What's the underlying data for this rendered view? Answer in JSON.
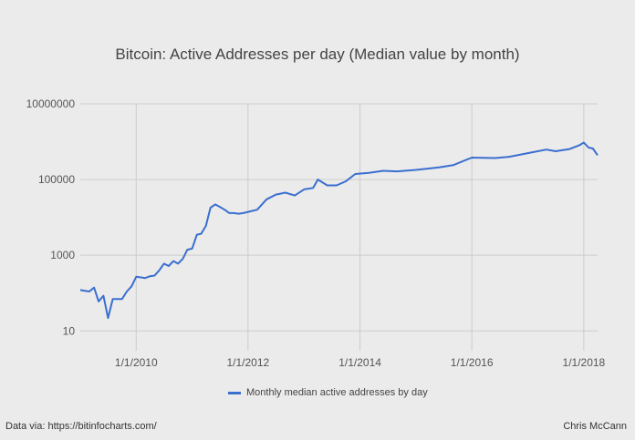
{
  "title": "Bitcoin: Active Addresses per day (Median value by month)",
  "source_note": "Data via: https://bitinfocharts.com/",
  "author": "Chris McCann",
  "colors": {
    "line": "#3a6fcf",
    "grid": "#cccccc",
    "background": "#ebebeb"
  },
  "chart_data": {
    "type": "line",
    "title": "Bitcoin: Active Addresses per day (Median value by month)",
    "xlabel": "",
    "ylabel": "",
    "yscale": "log",
    "ylim": [
      3,
      10000000
    ],
    "xlim": [
      "2009-01-01",
      "2018-04-01"
    ],
    "grid": true,
    "legend_position": "bottom",
    "y_ticks": [
      "10",
      "1000",
      "100000",
      "10000000"
    ],
    "x_ticks": [
      "1/1/2010",
      "1/1/2012",
      "1/1/2014",
      "1/1/2016",
      "1/1/2018"
    ],
    "series": [
      {
        "name": "Monthly median active addresses by day",
        "x": [
          "2009-01-01",
          "2009-02-01",
          "2009-03-01",
          "2009-04-01",
          "2009-05-01",
          "2009-06-01",
          "2009-07-01",
          "2009-08-01",
          "2009-09-01",
          "2009-10-01",
          "2009-11-01",
          "2009-12-01",
          "2010-01-01",
          "2010-02-01",
          "2010-03-01",
          "2010-04-01",
          "2010-05-01",
          "2010-06-01",
          "2010-07-01",
          "2010-08-01",
          "2010-09-01",
          "2010-10-01",
          "2010-11-01",
          "2010-12-01",
          "2011-01-01",
          "2011-02-01",
          "2011-03-01",
          "2011-04-01",
          "2011-05-01",
          "2011-06-01",
          "2011-07-01",
          "2011-08-01",
          "2011-09-01",
          "2011-10-01",
          "2011-11-01",
          "2011-12-01",
          "2012-01-01",
          "2012-03-01",
          "2012-05-01",
          "2012-07-01",
          "2012-09-01",
          "2012-11-01",
          "2013-01-01",
          "2013-03-01",
          "2013-04-01",
          "2013-06-01",
          "2013-08-01",
          "2013-10-01",
          "2013-12-01",
          "2014-03-01",
          "2014-06-01",
          "2014-09-01",
          "2015-01-01",
          "2015-06-01",
          "2015-09-01",
          "2016-01-01",
          "2016-06-01",
          "2016-09-01",
          "2017-01-01",
          "2017-05-01",
          "2017-07-01",
          "2017-10-01",
          "2017-12-01",
          "2018-01-01",
          "2018-02-01",
          "2018-03-01",
          "2018-04-01"
        ],
        "values": [
          120,
          115,
          110,
          140,
          60,
          85,
          22,
          70,
          70,
          70,
          110,
          150,
          270,
          260,
          250,
          280,
          290,
          400,
          600,
          520,
          700,
          600,
          800,
          1400,
          1500,
          3500,
          3700,
          6000,
          18000,
          22000,
          19000,
          16000,
          13000,
          13000,
          12500,
          13000,
          14000,
          16000,
          30000,
          40000,
          45000,
          38000,
          55000,
          60000,
          100000,
          70000,
          70000,
          90000,
          140000,
          150000,
          170000,
          165000,
          180000,
          210000,
          240000,
          380000,
          370000,
          400000,
          500000,
          620000,
          560000,
          640000,
          800000,
          950000,
          700000,
          660000,
          440000
        ]
      }
    ]
  }
}
